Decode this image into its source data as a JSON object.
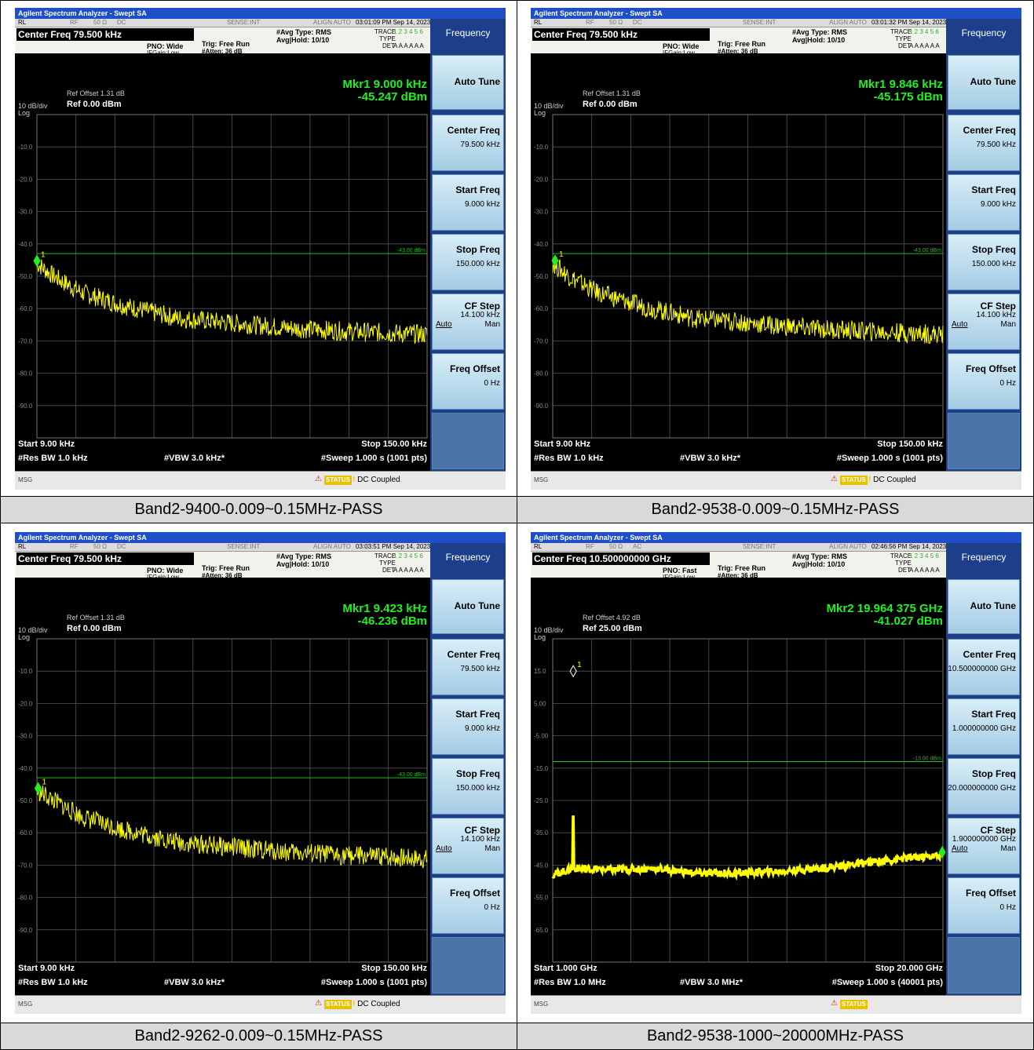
{
  "captions": [
    "Band2-9400-0.009~0.15MHz-PASS",
    "Band2-9538-0.009~0.15MHz-PASS",
    "Band2-9262-0.009~0.15MHz-PASS",
    "Band2-9538-1000~20000MHz-PASS"
  ],
  "common": {
    "window_title": "Agilent Spectrum Analyzer - Swept SA",
    "rl": "RL",
    "rf": "RF",
    "impedance": "50 Ω",
    "sense": "SENSE:INT",
    "align": "ALIGN AUTO",
    "avg_type": "#Avg Type: RMS",
    "avg_hold": "Avg|Hold: 10/10",
    "trig": "Trig: Free Run",
    "atten": "#Atten: 36 dB",
    "ifgain": "IFGain:Low",
    "trace_lbl": "TRACE",
    "type_lbl": "TYPE",
    "det_lbl": "DET",
    "trace_vals": "1 2 3 4 5 6",
    "det_vals": "A A A A A A",
    "db_div": "10 dB/div",
    "log": "Log",
    "msg": "MSG",
    "status": "STATUS",
    "softkey_menu": "Frequency",
    "auto_tune": "Auto Tune",
    "center_freq_lbl": "Center Freq",
    "start_freq_lbl": "Start Freq",
    "stop_freq_lbl": "Stop Freq",
    "cf_step_lbl": "CF Step",
    "freq_offset_lbl": "Freq Offset",
    "freq_offset_val": "0 Hz",
    "auto": "Auto",
    "man": "Man"
  },
  "panels": [
    {
      "coupling": "DC",
      "timestamp": "03:01:09 PM Sep 14, 2023",
      "center_freq": "Center Freq 79.500 kHz",
      "pno": "PNO: Wide",
      "ref_offset": "Ref Offset 1.31 dB",
      "ref_level": "Ref 0.00 dBm",
      "marker_line1": "Mkr1 9.000 kHz",
      "marker_line2": "-45.247 dBm",
      "limit_label": "-43.00 dBm",
      "y_ticks": [
        "-10.0",
        "-20.0",
        "-30.0",
        "-40.0",
        "-50.0",
        "-60.0",
        "-70.0",
        "-80.0",
        "-90.0"
      ],
      "start": "Start 9.00 kHz",
      "stop": "Stop 150.00 kHz",
      "rbw": "#Res BW 1.0 kHz",
      "vbw": "#VBW 3.0 kHz*",
      "sweep": "#Sweep  1.000 s (1001 pts)",
      "dc_coupled": "DC Coupled",
      "sk_center": "79.500 kHz",
      "sk_start": "9.000 kHz",
      "sk_stop": "150.000 kHz",
      "sk_step": "14.100 kHz",
      "marker_num": "1"
    },
    {
      "coupling": "DC",
      "timestamp": "03:01:32 PM Sep 14, 2023",
      "center_freq": "Center Freq 79.500 kHz",
      "pno": "PNO: Wide",
      "ref_offset": "Ref Offset 1.31 dB",
      "ref_level": "Ref 0.00 dBm",
      "marker_line1": "Mkr1 9.846 kHz",
      "marker_line2": "-45.175 dBm",
      "limit_label": "-43.00 dBm",
      "y_ticks": [
        "-10.0",
        "-20.0",
        "-30.0",
        "-40.0",
        "-50.0",
        "-60.0",
        "-70.0",
        "-80.0",
        "-90.0"
      ],
      "start": "Start 9.00 kHz",
      "stop": "Stop 150.00 kHz",
      "rbw": "#Res BW 1.0 kHz",
      "vbw": "#VBW 3.0 kHz*",
      "sweep": "#Sweep  1.000 s (1001 pts)",
      "dc_coupled": "DC Coupled",
      "sk_center": "79.500 kHz",
      "sk_start": "9.000 kHz",
      "sk_stop": "150.000 kHz",
      "sk_step": "14.100 kHz",
      "marker_num": "1"
    },
    {
      "coupling": "DC",
      "timestamp": "03:03:51 PM Sep 14, 2023",
      "center_freq": "Center Freq 79.500 kHz",
      "pno": "PNO: Wide",
      "ref_offset": "Ref Offset 1.31 dB",
      "ref_level": "Ref 0.00 dBm",
      "marker_line1": "Mkr1 9.423 kHz",
      "marker_line2": "-46.236 dBm",
      "limit_label": "-43.00 dBm",
      "y_ticks": [
        "-10.0",
        "-20.0",
        "-30.0",
        "-40.0",
        "-50.0",
        "-60.0",
        "-70.0",
        "-80.0",
        "-90.0"
      ],
      "start": "Start 9.00 kHz",
      "stop": "Stop 150.00 kHz",
      "rbw": "#Res BW 1.0 kHz",
      "vbw": "#VBW 3.0 kHz*",
      "sweep": "#Sweep  1.000 s (1001 pts)",
      "dc_coupled": "DC Coupled",
      "sk_center": "79.500 kHz",
      "sk_start": "9.000 kHz",
      "sk_stop": "150.000 kHz",
      "sk_step": "14.100 kHz",
      "marker_num": "1"
    },
    {
      "coupling": "AC",
      "timestamp": "02:46:56 PM Sep 14, 2023",
      "center_freq": "Center Freq 10.500000000 GHz",
      "pno": "PNO: Fast",
      "ref_offset": "Ref Offset 4.92 dB",
      "ref_level": "Ref 25.00 dBm",
      "marker_line1": "Mkr2 19.964 375 GHz",
      "marker_line2": "-41.027 dBm",
      "limit_label": "-13.00 dBm",
      "y_ticks": [
        "15.0",
        "5.00",
        "-5.00",
        "-15.0",
        "-25.0",
        "-35.0",
        "-45.0",
        "-55.0",
        "-65.0"
      ],
      "start": "Start 1.000 GHz",
      "stop": "Stop 20.000 GHz",
      "rbw": "#Res BW 1.0 MHz",
      "vbw": "#VBW 3.0 MHz*",
      "sweep": "#Sweep  1.000 s (40001 pts)",
      "dc_coupled": "",
      "sk_center": "10.500000000 GHz",
      "sk_start": "1.000000000 GHz",
      "sk_stop": "20.000000000 GHz",
      "sk_step": "1.900000000 GHz",
      "marker_num": "2"
    }
  ],
  "chart_data": [
    {
      "type": "line",
      "x_unit": "kHz",
      "xlim": [
        9,
        150
      ],
      "ylim": [
        -100,
        0
      ],
      "ylabel": "dBm",
      "grid": true,
      "limit_line": -43,
      "markers": [
        {
          "name": "1",
          "x": 9.0,
          "y": -45.247
        }
      ],
      "series": [
        {
          "x": [
            9,
            15,
            25,
            40,
            60,
            80,
            100,
            120,
            150
          ],
          "values": [
            -46,
            -50,
            -55,
            -59,
            -63,
            -64.5,
            -66,
            -67,
            -68
          ]
        }
      ]
    },
    {
      "type": "line",
      "x_unit": "kHz",
      "xlim": [
        9,
        150
      ],
      "ylim": [
        -100,
        0
      ],
      "ylabel": "dBm",
      "grid": true,
      "limit_line": -43,
      "markers": [
        {
          "name": "1",
          "x": 9.846,
          "y": -45.175
        }
      ],
      "series": [
        {
          "x": [
            9,
            15,
            25,
            40,
            60,
            80,
            100,
            120,
            150
          ],
          "values": [
            -46,
            -50,
            -55,
            -59,
            -63,
            -64.5,
            -66,
            -67,
            -68
          ]
        }
      ]
    },
    {
      "type": "line",
      "x_unit": "kHz",
      "xlim": [
        9,
        150
      ],
      "ylim": [
        -100,
        0
      ],
      "ylabel": "dBm",
      "grid": true,
      "limit_line": -43,
      "markers": [
        {
          "name": "1",
          "x": 9.423,
          "y": -46.236
        }
      ],
      "series": [
        {
          "x": [
            9,
            15,
            25,
            40,
            60,
            80,
            100,
            120,
            150
          ],
          "values": [
            -47,
            -50,
            -55,
            -59,
            -63,
            -64.5,
            -66,
            -67,
            -68
          ]
        }
      ]
    },
    {
      "type": "line",
      "x_unit": "GHz",
      "xlim": [
        1,
        20
      ],
      "ylim": [
        -75,
        25
      ],
      "ylabel": "dBm",
      "grid": true,
      "limit_line": -13,
      "markers": [
        {
          "name": "1",
          "x": 2.0,
          "y": 15
        },
        {
          "name": "2",
          "x": 19.964375,
          "y": -41.027
        }
      ],
      "series": [
        {
          "x": [
            1,
            2,
            4,
            6,
            8,
            10,
            12,
            14,
            16,
            18,
            20
          ],
          "values": [
            -48,
            -46,
            -46.5,
            -46,
            -47.5,
            -47.5,
            -47,
            -46,
            -44.5,
            -43,
            -42
          ]
        }
      ]
    }
  ]
}
